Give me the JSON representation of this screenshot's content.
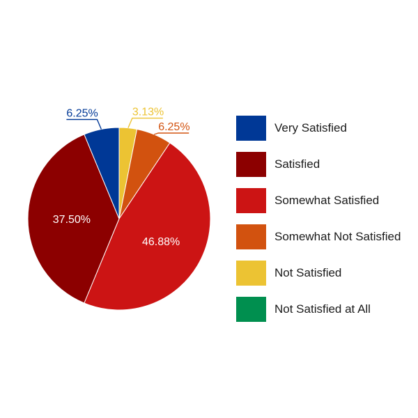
{
  "chart_data": {
    "type": "pie",
    "categories": [
      "Very Satisfied",
      "Satisfied",
      "Somewhat Satisfied",
      "Somewhat Not Satisfied",
      "Not Satisfied",
      "Not Satisfied at All"
    ],
    "values": [
      6.25,
      37.5,
      46.88,
      6.25,
      3.13,
      0
    ],
    "data_labels": [
      "6.25%",
      "37.50%",
      "46.88%",
      "6.25%",
      "3.13%",
      ""
    ],
    "colors": [
      "#003896",
      "#8c0000",
      "#cc1414",
      "#d2520f",
      "#ecc333",
      "#008f4f"
    ],
    "legend_placement": "right",
    "slice_order": "clockwise from top",
    "title": "",
    "xlabel": "",
    "ylabel": ""
  }
}
